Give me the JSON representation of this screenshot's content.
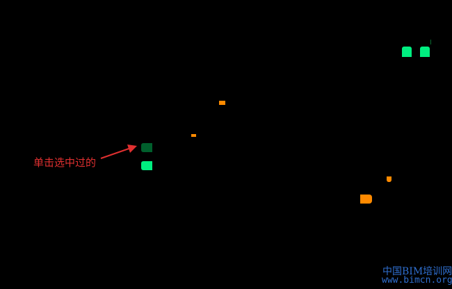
{
  "canvas": {
    "background": "#000000"
  },
  "colors": {
    "selected_marker": "#005f2c",
    "unselected_marker": "#00ee80",
    "orange_marker": "#ff8a00",
    "annotation": "#e03030",
    "watermark": "#2f6fd0"
  },
  "annotation": {
    "text": "单击选中过的",
    "arrow_icon": "red-arrow-icon"
  },
  "watermark": {
    "line1": "中国BIM培训网",
    "line2": "www.bimcn.org"
  }
}
